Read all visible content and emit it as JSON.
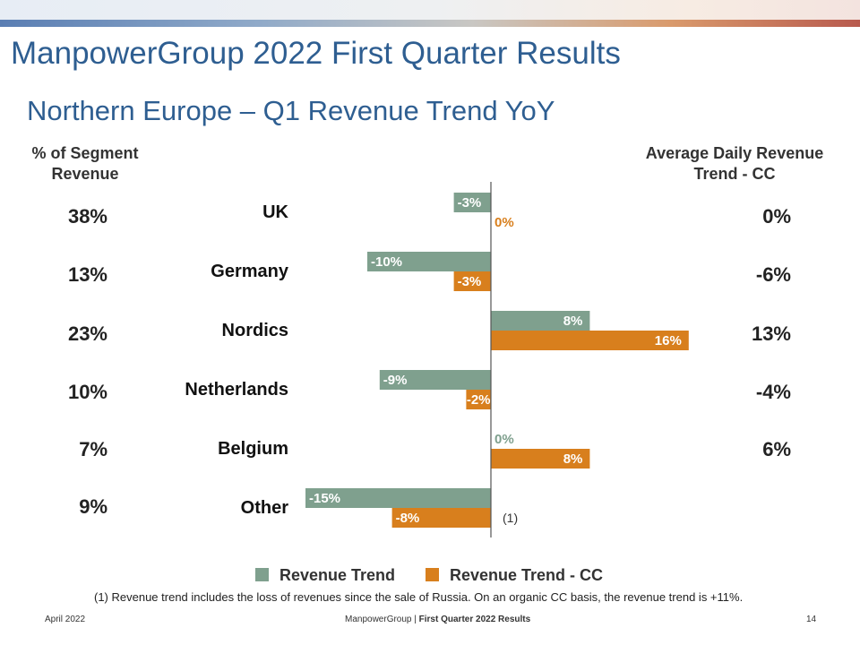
{
  "title": "ManpowerGroup 2022 First Quarter Results",
  "subtitle": "Northern Europe – Q1 Revenue Trend YoY",
  "left_header": "% of Segment Revenue",
  "right_header": "Average Daily Revenue Trend - CC",
  "segment_share": [
    "38%",
    "13%",
    "23%",
    "10%",
    "7%",
    "9%"
  ],
  "avg_daily_trend": [
    "0%",
    "-6%",
    "13%",
    "-4%",
    "6%",
    ""
  ],
  "chart_data": {
    "type": "bar",
    "orientation": "horizontal",
    "categories": [
      "UK",
      "Germany",
      "Nordics",
      "Netherlands",
      "Belgium",
      "Other"
    ],
    "series": [
      {
        "name": "Revenue Trend",
        "color": "#7fa08e",
        "values": [
          -3,
          -10,
          8,
          -9,
          0,
          -15
        ],
        "labels": [
          "-3%",
          "-10%",
          "8%",
          "-9%",
          "0%",
          "-15%"
        ]
      },
      {
        "name": "Revenue Trend - CC",
        "color": "#d87f1d",
        "values": [
          0,
          -3,
          16,
          -2,
          8,
          -8
        ],
        "labels": [
          "0%",
          "-3%",
          "16%",
          "-2%",
          "8%",
          "-8%"
        ]
      }
    ],
    "annotation": "(1)",
    "grid": false
  },
  "legend_items": [
    "Revenue Trend",
    "Revenue Trend - CC"
  ],
  "footnote": "(1)  Revenue trend includes the loss of revenues since the sale of Russia. On an organic CC basis, the revenue trend is +11%.",
  "footer": {
    "date": "April 2022",
    "company": "ManpowerGroup",
    "separator": "|",
    "doc": "First Quarter 2022 Results",
    "page": "14"
  }
}
